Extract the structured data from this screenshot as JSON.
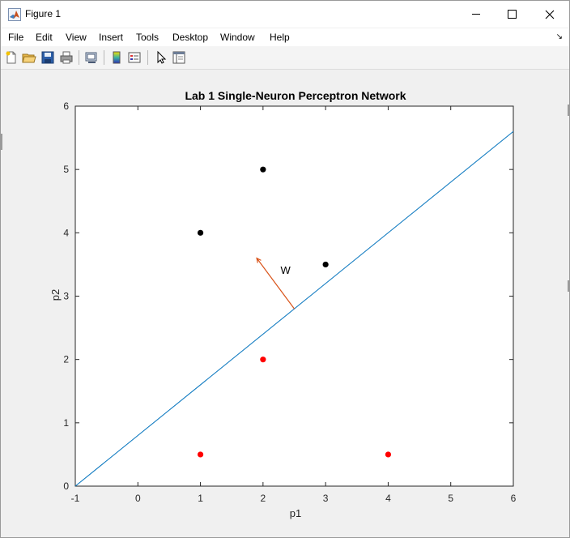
{
  "window": {
    "title": "Figure 1",
    "icon": "matlab-logo-icon",
    "controls": [
      "minimize-icon",
      "maximize-icon",
      "close-icon"
    ]
  },
  "menu": {
    "items": [
      "File",
      "Edit",
      "View",
      "Insert",
      "Tools",
      "Desktop",
      "Window",
      "Help"
    ],
    "dock_icon": "dock-arrow-icon"
  },
  "toolbar": {
    "buttons": [
      "new-figure-icon",
      "open-file-icon",
      "save-icon",
      "print-icon",
      "link-plot-icon",
      "insert-colorbar-icon",
      "insert-legend-icon",
      "edit-plot-pointer-icon",
      "property-inspector-icon"
    ]
  },
  "chart_data": {
    "type": "scatter",
    "title": "Lab 1 Single-Neuron Perceptron Network",
    "xlabel": "p1",
    "ylabel": "p2",
    "xlim": [
      -1,
      6
    ],
    "ylim": [
      0,
      6
    ],
    "xticks": [
      "-1",
      "0",
      "1",
      "2",
      "3",
      "4",
      "5",
      "6"
    ],
    "yticks": [
      "0",
      "1",
      "2",
      "3",
      "4",
      "5",
      "6"
    ],
    "grid": false,
    "series": [
      {
        "points": [
          [
            1,
            4
          ],
          [
            2,
            5
          ],
          [
            3,
            3.5
          ]
        ],
        "color": "#000000"
      },
      {
        "points": [
          [
            1,
            0.5
          ],
          [
            2,
            2
          ],
          [
            4,
            0.5
          ]
        ],
        "color": "#ff0000"
      }
    ],
    "decision_boundary": {
      "x": [
        -1,
        6
      ],
      "y": [
        0,
        5.6
      ],
      "color": "#0072bd"
    },
    "weight_vector": {
      "from": [
        2.5,
        2.8
      ],
      "to": [
        1.9,
        3.6
      ],
      "label": "W",
      "label_at": [
        2.28,
        3.35
      ],
      "color": "#d95319"
    }
  }
}
